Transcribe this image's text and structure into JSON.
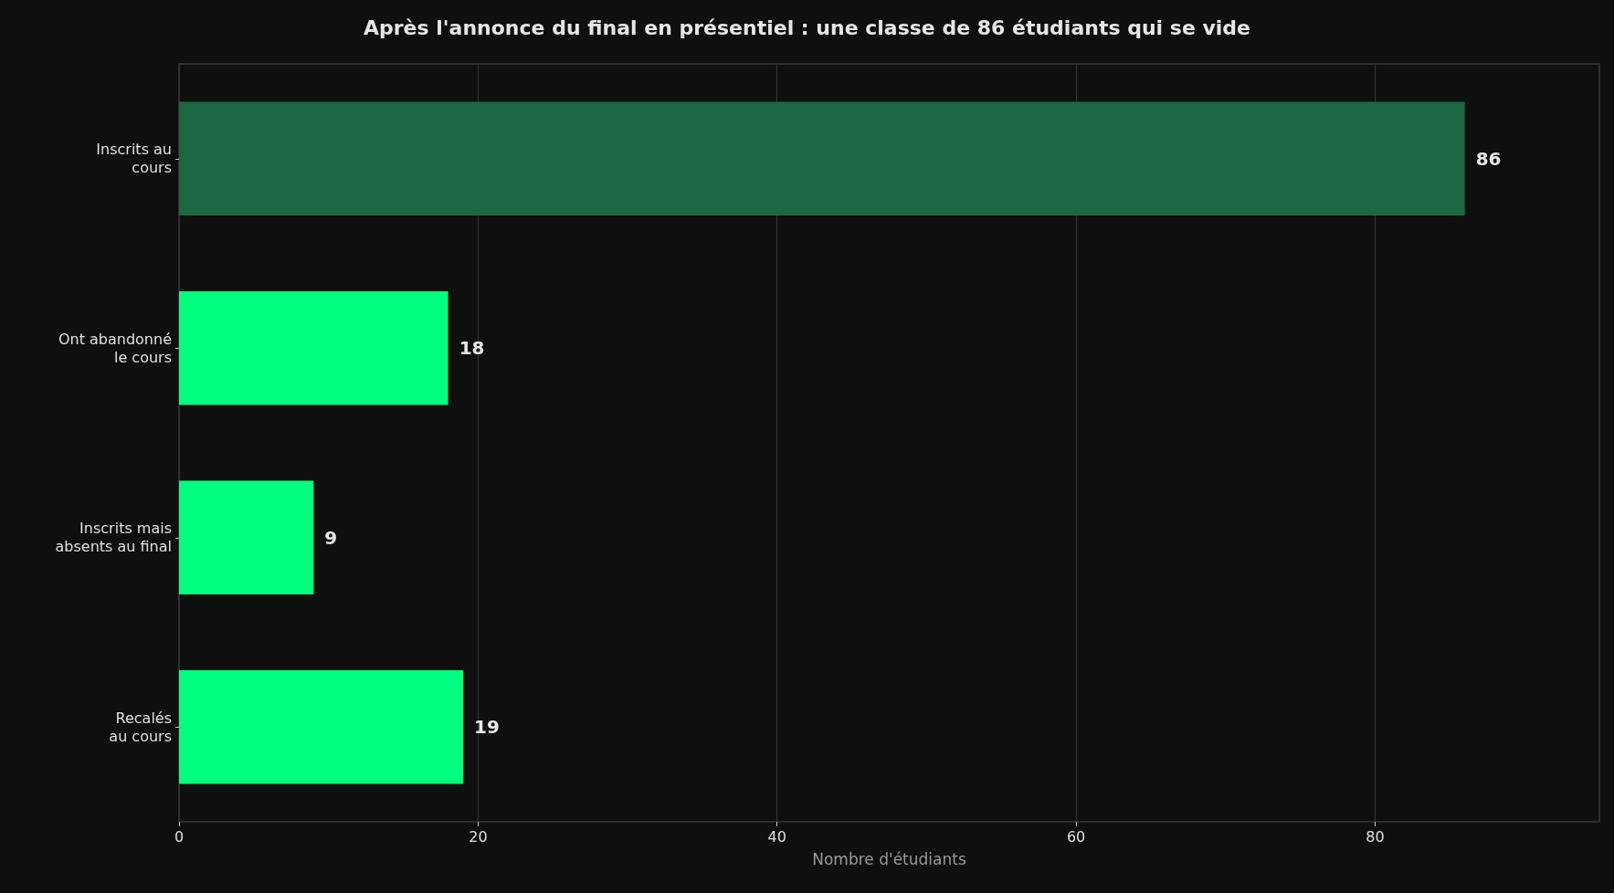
{
  "chart_data": {
    "type": "bar",
    "orientation": "horizontal",
    "title": "Après l'annonce du final en présentiel : une classe de 86 étudiants qui se vide",
    "xlabel": "Nombre d'étudiants",
    "categories": [
      "Inscrits au\ncours",
      "Ont abandonné\nle cours",
      "Inscrits mais\nabsents au final",
      "Recalés\nau cours"
    ],
    "values": [
      86,
      18,
      9,
      19
    ],
    "colors": [
      "#1b6842",
      "#00ff7f",
      "#00ff7f",
      "#00ff7f"
    ],
    "xlim": [
      0,
      95
    ],
    "xticks": [
      0,
      20,
      40,
      60,
      80
    ],
    "grid": "x",
    "data_labels": true
  }
}
